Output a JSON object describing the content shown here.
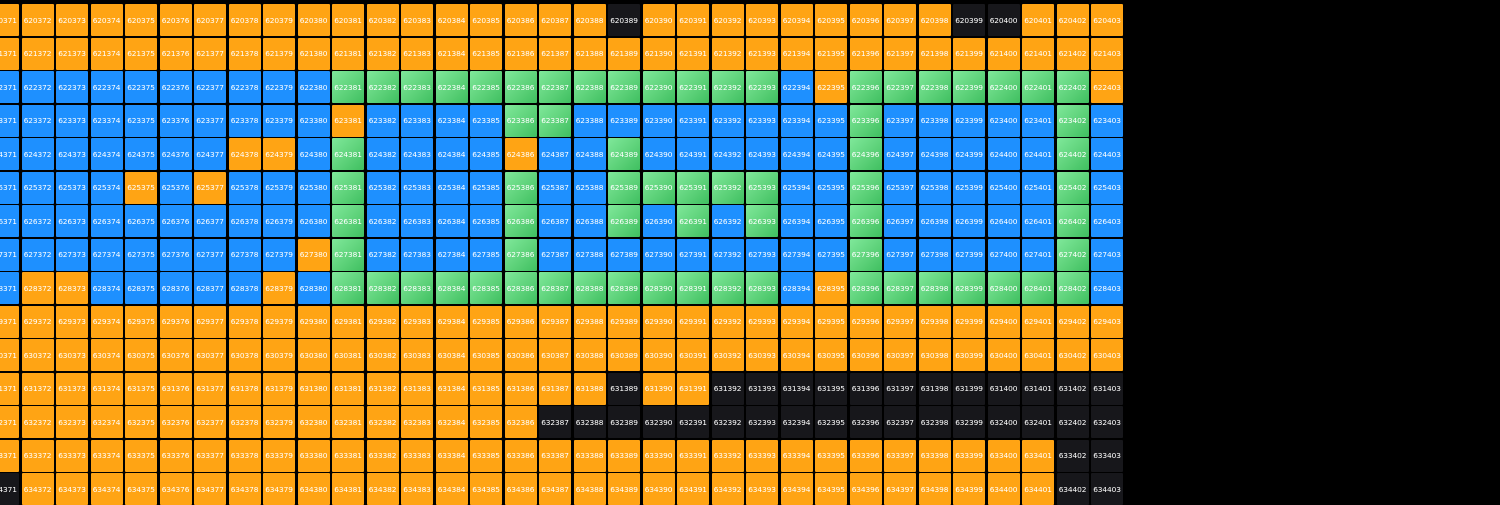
{
  "grid": {
    "first_row_start": 620371,
    "row_step": 1000,
    "columns_visible": 33,
    "rows": [
      "ooooooooooooooooookoooooooookkoooooooooooooo",
      "ooooooooooooooooooooooooooooooooooooooooooo",
      "bbbbbbbbbbgggggggbbbbbbbogggggggoobbbbbbbbbbbbbbb",
      "bbbbbbbbbgobbbggbbbbbbbobgbbbbbbbbbbbbbbbbbbbbbbb",
      "bbbbbbbooggboggbbbggbbgbbgbbbbbbbbbbbbbbbbbbbbbb",
      "bbbbobbbbgbbbbggbgggggggboggbgbbobbbbbbbbbbbbbbb",
      "bbbbbbbbbgbbbbggbbgbgbgbbbgbggbbbbbbbbbbbbbbbbbb",
      "bbbbbbbbbgbbbbggbbbbbbbbbbbbbbbbbbbbbbbbbbbbbbbb",
      "boobbbbbobgggggggbgoggbobgobgbgbggbbobbbbbbbbbbb",
      "ooooooooooooooooooooooooooooooooooooooooooooo",
      "ooooooooooooooooooooooooooooooooooooooooooooo",
      "oooooooooooooooooooooooooooooooooooooooooooooo",
      "oooooooooooooooooooooooooooooooooooooooooooooo",
      "ooooooooooooooooooooooooooooooooooooooooooooo",
      "kooooooooooooooooooooooooooooooooooooooooooo"
    ],
    "color_key": {
      "o": "#ffa414",
      "b": "#1e90ff",
      "g": "#5ed27a",
      "k": "#17171b"
    }
  }
}
